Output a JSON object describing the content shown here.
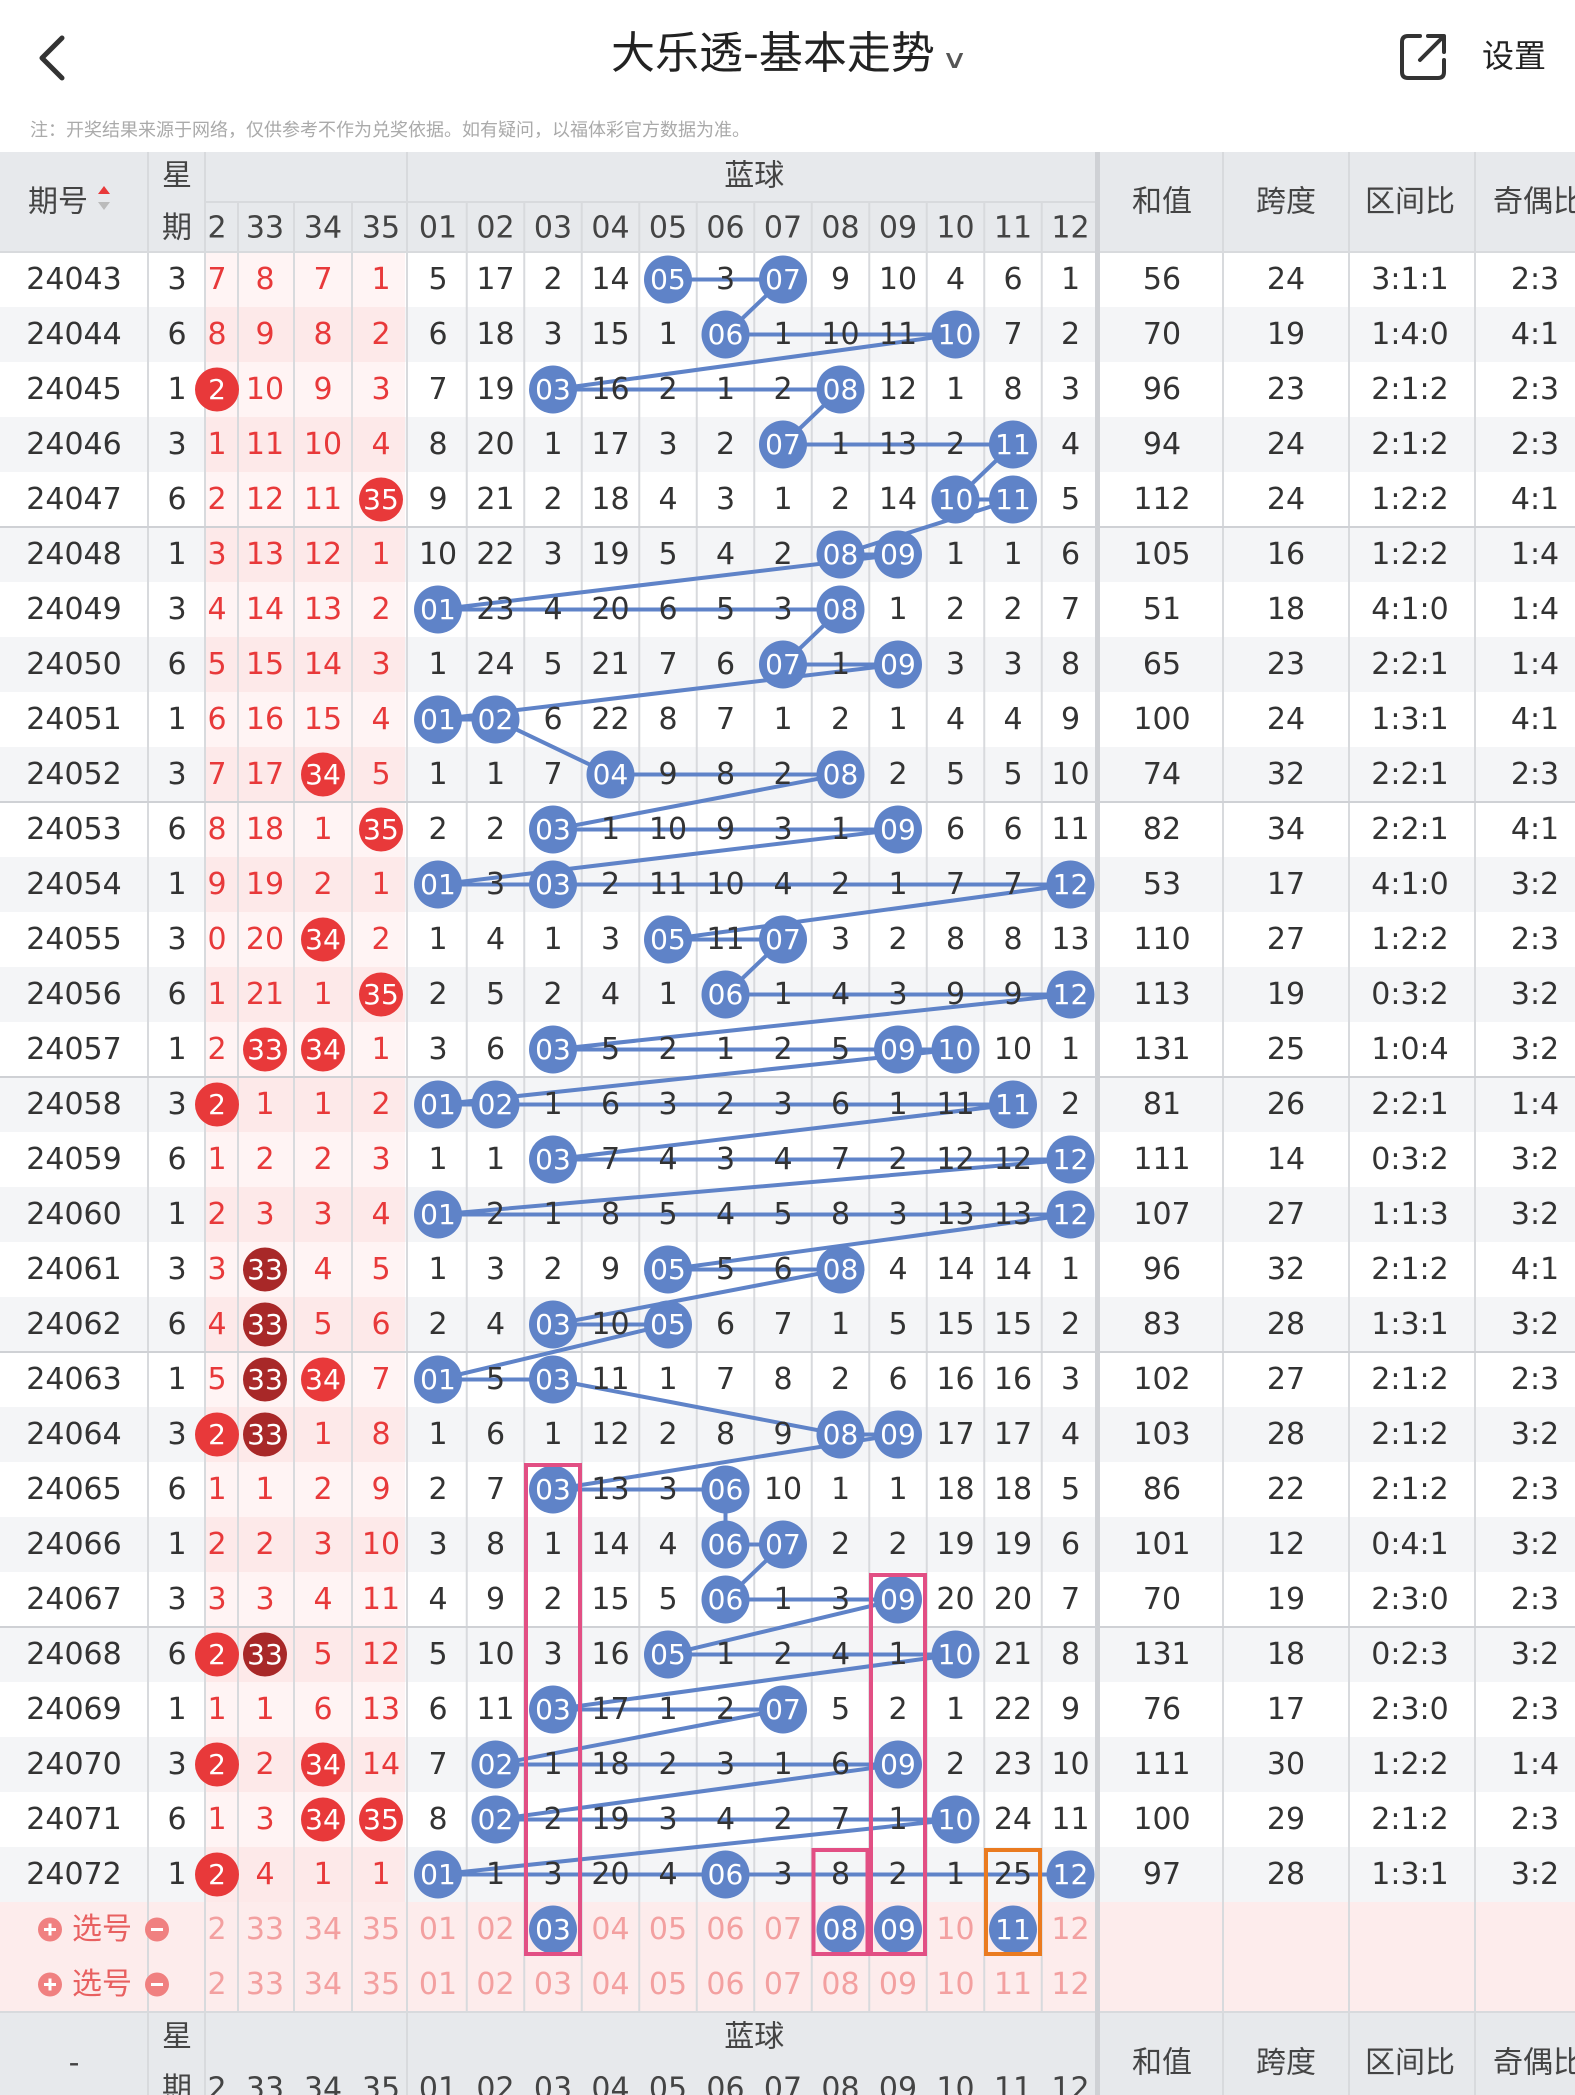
{
  "header": {
    "back_icon": "chevron-left-icon",
    "title": "大乐透-基本走势",
    "title_dropdown_icon": "chevron-down-icon",
    "share_icon": "share-external-icon",
    "settings_label": "设置"
  },
  "notice": "注：开奖结果来源于网络，仅供参考不作为兑奖依据。如有疑问，以福体彩官方数据为准。",
  "table_header": {
    "issue": "期号",
    "week_line1": "星",
    "week_line2": "期",
    "front_cols": [
      "2",
      "33",
      "34",
      "35"
    ],
    "blue_title": "蓝球",
    "blue_cols": [
      "01",
      "02",
      "03",
      "04",
      "05",
      "06",
      "07",
      "08",
      "09",
      "10",
      "11",
      "12"
    ],
    "sum": "和值",
    "span": "跨度",
    "zone": "区间比",
    "oddeven": "奇偶比"
  },
  "rows": [
    {
      "issue": "24043",
      "w": "3",
      "f": [
        "7",
        "8",
        "7",
        "1"
      ],
      "fh": [],
      "b": [
        "5",
        "17",
        "2",
        "14",
        "05",
        "3",
        "07",
        "9",
        "10",
        "4",
        "6",
        "1"
      ],
      "sum": "56",
      "span": "24",
      "zone": "3:1:1",
      "oe": "2:3"
    },
    {
      "issue": "24044",
      "w": "6",
      "f": [
        "8",
        "9",
        "8",
        "2"
      ],
      "fh": [],
      "b": [
        "6",
        "18",
        "3",
        "15",
        "1",
        "06",
        "1",
        "10",
        "11",
        "10",
        "7",
        "2"
      ],
      "sum": "70",
      "span": "19",
      "zone": "1:4:0",
      "oe": "4:1"
    },
    {
      "issue": "24045",
      "w": "1",
      "f": [
        "2",
        "10",
        "9",
        "3"
      ],
      "fh": [
        0
      ],
      "b": [
        "7",
        "19",
        "03",
        "16",
        "2",
        "1",
        "2",
        "08",
        "12",
        "1",
        "8",
        "3"
      ],
      "sum": "96",
      "span": "23",
      "zone": "2:1:2",
      "oe": "2:3"
    },
    {
      "issue": "24046",
      "w": "3",
      "f": [
        "1",
        "11",
        "10",
        "4"
      ],
      "fh": [],
      "b": [
        "8",
        "20",
        "1",
        "17",
        "3",
        "2",
        "07",
        "1",
        "13",
        "2",
        "11",
        "4"
      ],
      "sum": "94",
      "span": "24",
      "zone": "2:1:2",
      "oe": "2:3"
    },
    {
      "issue": "24047",
      "w": "6",
      "f": [
        "2",
        "12",
        "11",
        "35"
      ],
      "fh": [
        3
      ],
      "b": [
        "9",
        "21",
        "2",
        "18",
        "4",
        "3",
        "1",
        "2",
        "14",
        "10",
        "11",
        "5"
      ],
      "sum": "112",
      "span": "24",
      "zone": "1:2:2",
      "oe": "4:1"
    },
    {
      "issue": "24048",
      "w": "1",
      "f": [
        "3",
        "13",
        "12",
        "1"
      ],
      "fh": [],
      "b": [
        "10",
        "22",
        "3",
        "19",
        "5",
        "4",
        "2",
        "08",
        "09",
        "1",
        "1",
        "6"
      ],
      "sum": "105",
      "span": "16",
      "zone": "1:2:2",
      "oe": "1:4"
    },
    {
      "issue": "24049",
      "w": "3",
      "f": [
        "4",
        "14",
        "13",
        "2"
      ],
      "fh": [],
      "b": [
        "01",
        "23",
        "4",
        "20",
        "6",
        "5",
        "3",
        "08",
        "1",
        "2",
        "2",
        "7"
      ],
      "sum": "51",
      "span": "18",
      "zone": "4:1:0",
      "oe": "1:4"
    },
    {
      "issue": "24050",
      "w": "6",
      "f": [
        "5",
        "15",
        "14",
        "3"
      ],
      "fh": [],
      "b": [
        "1",
        "24",
        "5",
        "21",
        "7",
        "6",
        "07",
        "1",
        "09",
        "3",
        "3",
        "8"
      ],
      "sum": "65",
      "span": "23",
      "zone": "2:2:1",
      "oe": "1:4"
    },
    {
      "issue": "24051",
      "w": "1",
      "f": [
        "6",
        "16",
        "15",
        "4"
      ],
      "fh": [],
      "b": [
        "01",
        "02",
        "6",
        "22",
        "8",
        "7",
        "1",
        "2",
        "1",
        "4",
        "4",
        "9"
      ],
      "sum": "100",
      "span": "24",
      "zone": "1:3:1",
      "oe": "4:1"
    },
    {
      "issue": "24052",
      "w": "3",
      "f": [
        "7",
        "17",
        "34",
        "5"
      ],
      "fh": [
        2
      ],
      "b": [
        "1",
        "1",
        "7",
        "04",
        "9",
        "8",
        "2",
        "08",
        "2",
        "5",
        "5",
        "10"
      ],
      "sum": "74",
      "span": "32",
      "zone": "2:2:1",
      "oe": "2:3"
    },
    {
      "issue": "24053",
      "w": "6",
      "f": [
        "8",
        "18",
        "1",
        "35"
      ],
      "fh": [
        3
      ],
      "b": [
        "2",
        "2",
        "03",
        "1",
        "10",
        "9",
        "3",
        "1",
        "09",
        "6",
        "6",
        "11"
      ],
      "sum": "82",
      "span": "34",
      "zone": "2:2:1",
      "oe": "4:1"
    },
    {
      "issue": "24054",
      "w": "1",
      "f": [
        "9",
        "19",
        "2",
        "1"
      ],
      "fh": [],
      "b": [
        "01",
        "3",
        "03",
        "2",
        "11",
        "10",
        "4",
        "2",
        "1",
        "7",
        "7",
        "12"
      ],
      "sum": "53",
      "span": "17",
      "zone": "4:1:0",
      "oe": "3:2"
    },
    {
      "issue": "24055",
      "w": "3",
      "f": [
        "0",
        "20",
        "34",
        "2"
      ],
      "fh": [
        2
      ],
      "b": [
        "1",
        "4",
        "1",
        "3",
        "05",
        "11",
        "07",
        "3",
        "2",
        "8",
        "8",
        "13"
      ],
      "sum": "110",
      "span": "27",
      "zone": "1:2:2",
      "oe": "2:3"
    },
    {
      "issue": "24056",
      "w": "6",
      "f": [
        "1",
        "21",
        "1",
        "35"
      ],
      "fh": [
        3
      ],
      "b": [
        "2",
        "5",
        "2",
        "4",
        "1",
        "06",
        "1",
        "4",
        "3",
        "9",
        "9",
        "12"
      ],
      "sum": "113",
      "span": "19",
      "zone": "0:3:2",
      "oe": "3:2"
    },
    {
      "issue": "24057",
      "w": "1",
      "f": [
        "2",
        "33",
        "34",
        "1"
      ],
      "fh": [
        1,
        2
      ],
      "b": [
        "3",
        "6",
        "03",
        "5",
        "2",
        "1",
        "2",
        "5",
        "09",
        "10",
        "10",
        "1"
      ],
      "sum": "131",
      "span": "25",
      "zone": "1:0:4",
      "oe": "3:2"
    },
    {
      "issue": "24058",
      "w": "3",
      "f": [
        "2",
        "1",
        "1",
        "2"
      ],
      "fh": [
        0
      ],
      "b": [
        "01",
        "02",
        "1",
        "6",
        "3",
        "2",
        "3",
        "6",
        "1",
        "11",
        "11",
        "2"
      ],
      "sum": "81",
      "span": "26",
      "zone": "2:2:1",
      "oe": "1:4"
    },
    {
      "issue": "24059",
      "w": "6",
      "f": [
        "1",
        "2",
        "2",
        "3"
      ],
      "fh": [],
      "b": [
        "1",
        "1",
        "03",
        "7",
        "4",
        "3",
        "4",
        "7",
        "2",
        "12",
        "12",
        "12"
      ],
      "sum": "111",
      "span": "14",
      "zone": "0:3:2",
      "oe": "3:2"
    },
    {
      "issue": "24060",
      "w": "1",
      "f": [
        "2",
        "3",
        "3",
        "4"
      ],
      "fh": [],
      "b": [
        "01",
        "2",
        "1",
        "8",
        "5",
        "4",
        "5",
        "8",
        "3",
        "13",
        "13",
        "12"
      ],
      "sum": "107",
      "span": "27",
      "zone": "1:1:3",
      "oe": "3:2"
    },
    {
      "issue": "24061",
      "w": "3",
      "f": [
        "3",
        "33",
        "4",
        "5"
      ],
      "fh": [
        1
      ],
      "b": [
        "1",
        "3",
        "2",
        "9",
        "05",
        "5",
        "6",
        "08",
        "4",
        "14",
        "14",
        "1"
      ],
      "sum": "96",
      "span": "32",
      "zone": "2:1:2",
      "oe": "4:1"
    },
    {
      "issue": "24062",
      "w": "6",
      "f": [
        "4",
        "33",
        "5",
        "6"
      ],
      "fh": [
        1
      ],
      "b": [
        "2",
        "4",
        "03",
        "10",
        "05",
        "6",
        "7",
        "1",
        "5",
        "15",
        "15",
        "2"
      ],
      "sum": "83",
      "span": "28",
      "zone": "1:3:1",
      "oe": "3:2"
    },
    {
      "issue": "24063",
      "w": "1",
      "f": [
        "5",
        "33",
        "34",
        "7"
      ],
      "fh": [
        1,
        2
      ],
      "b": [
        "01",
        "5",
        "03",
        "11",
        "1",
        "7",
        "8",
        "2",
        "6",
        "16",
        "16",
        "3"
      ],
      "sum": "102",
      "span": "27",
      "zone": "2:1:2",
      "oe": "2:3"
    },
    {
      "issue": "24064",
      "w": "3",
      "f": [
        "2",
        "33",
        "1",
        "8"
      ],
      "fh": [
        0,
        1
      ],
      "b": [
        "1",
        "6",
        "1",
        "12",
        "2",
        "8",
        "9",
        "08",
        "09",
        "17",
        "17",
        "4"
      ],
      "sum": "103",
      "span": "28",
      "zone": "2:1:2",
      "oe": "3:2"
    },
    {
      "issue": "24065",
      "w": "6",
      "f": [
        "1",
        "1",
        "2",
        "9"
      ],
      "fh": [],
      "b": [
        "2",
        "7",
        "03",
        "13",
        "3",
        "06",
        "10",
        "1",
        "1",
        "18",
        "18",
        "5"
      ],
      "sum": "86",
      "span": "22",
      "zone": "2:1:2",
      "oe": "2:3"
    },
    {
      "issue": "24066",
      "w": "1",
      "f": [
        "2",
        "2",
        "3",
        "10"
      ],
      "fh": [],
      "b": [
        "3",
        "8",
        "1",
        "14",
        "4",
        "06",
        "07",
        "2",
        "2",
        "19",
        "19",
        "6"
      ],
      "sum": "101",
      "span": "12",
      "zone": "0:4:1",
      "oe": "3:2"
    },
    {
      "issue": "24067",
      "w": "3",
      "f": [
        "3",
        "3",
        "4",
        "11"
      ],
      "fh": [],
      "b": [
        "4",
        "9",
        "2",
        "15",
        "5",
        "06",
        "1",
        "3",
        "09",
        "20",
        "20",
        "7"
      ],
      "sum": "70",
      "span": "19",
      "zone": "2:3:0",
      "oe": "2:3"
    },
    {
      "issue": "24068",
      "w": "6",
      "f": [
        "2",
        "33",
        "5",
        "12"
      ],
      "fh": [
        0,
        1
      ],
      "b": [
        "5",
        "10",
        "3",
        "16",
        "05",
        "1",
        "2",
        "4",
        "1",
        "10",
        "21",
        "8"
      ],
      "sum": "131",
      "span": "18",
      "zone": "0:2:3",
      "oe": "3:2"
    },
    {
      "issue": "24069",
      "w": "1",
      "f": [
        "1",
        "1",
        "6",
        "13"
      ],
      "fh": [],
      "b": [
        "6",
        "11",
        "03",
        "17",
        "1",
        "2",
        "07",
        "5",
        "2",
        "1",
        "22",
        "9"
      ],
      "sum": "76",
      "span": "17",
      "zone": "2:3:0",
      "oe": "2:3"
    },
    {
      "issue": "24070",
      "w": "3",
      "f": [
        "2",
        "2",
        "34",
        "14"
      ],
      "fh": [
        0,
        2
      ],
      "b": [
        "7",
        "02",
        "1",
        "18",
        "2",
        "3",
        "1",
        "6",
        "09",
        "2",
        "23",
        "10"
      ],
      "sum": "111",
      "span": "30",
      "zone": "1:2:2",
      "oe": "1:4"
    },
    {
      "issue": "24071",
      "w": "6",
      "f": [
        "1",
        "3",
        "34",
        "35"
      ],
      "fh": [
        2,
        3
      ],
      "b": [
        "8",
        "02",
        "2",
        "19",
        "3",
        "4",
        "2",
        "7",
        "1",
        "10",
        "24",
        "11"
      ],
      "sum": "100",
      "span": "29",
      "zone": "2:1:2",
      "oe": "2:3"
    },
    {
      "issue": "24072",
      "w": "1",
      "f": [
        "2",
        "4",
        "1",
        "1"
      ],
      "fh": [
        0
      ],
      "b": [
        "01",
        "1",
        "3",
        "20",
        "4",
        "06",
        "3",
        "8",
        "2",
        "1",
        "25",
        "12"
      ],
      "sum": "97",
      "span": "28",
      "zone": "1:3:1",
      "oe": "3:2"
    }
  ],
  "pick_rows": [
    {
      "label": "选号",
      "add_icon": "plus-circle-icon",
      "remove_icon": "minus-circle-icon",
      "f": [
        "2",
        "33",
        "34",
        "35"
      ],
      "b": [
        "01",
        "02",
        "03",
        "04",
        "05",
        "06",
        "07",
        "08",
        "09",
        "10",
        "11",
        "12"
      ],
      "selected": [
        "03",
        "08",
        "09",
        "11"
      ]
    },
    {
      "label": "选号",
      "add_icon": "plus-circle-icon",
      "remove_icon": "minus-circle-icon",
      "f": [
        "2",
        "33",
        "34",
        "35"
      ],
      "b": [
        "01",
        "02",
        "03",
        "04",
        "05",
        "06",
        "07",
        "08",
        "09",
        "10",
        "11",
        "12"
      ],
      "selected": []
    }
  ],
  "footer": {
    "issue": "-"
  },
  "colors": {
    "blue_ball": "#5f83c8",
    "red_ball": "#e8393a",
    "dark_red_ball": "#a82828",
    "pink_box": "#e24f84",
    "orange_box": "#ea7b20",
    "line": "#5f83c8"
  }
}
